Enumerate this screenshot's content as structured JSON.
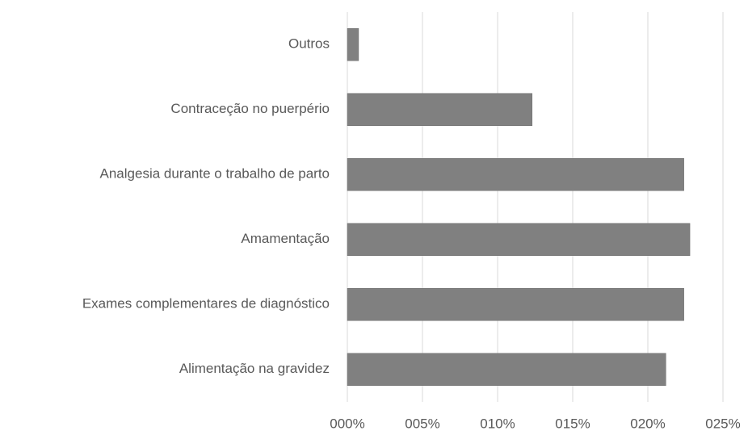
{
  "chart_data": {
    "type": "barh",
    "categories": [
      "Outros",
      "Contraceção no puerpério",
      "Analgesia durante o trabalho de parto",
      "Amamentação",
      "Exames complementares de diagnóstico",
      "Alimentação na gravidez"
    ],
    "values": [
      0.75,
      12.3,
      22.4,
      22.8,
      22.4,
      21.2
    ],
    "color": "#808080",
    "xlim": [
      0,
      25
    ],
    "xticks": [
      {
        "value": 0,
        "label": "000%"
      },
      {
        "value": 5,
        "label": "005%"
      },
      {
        "value": 10,
        "label": "010%"
      },
      {
        "value": 15,
        "label": "015%"
      },
      {
        "value": 20,
        "label": "020%"
      },
      {
        "value": 25,
        "label": "025%"
      }
    ],
    "grid": true
  }
}
